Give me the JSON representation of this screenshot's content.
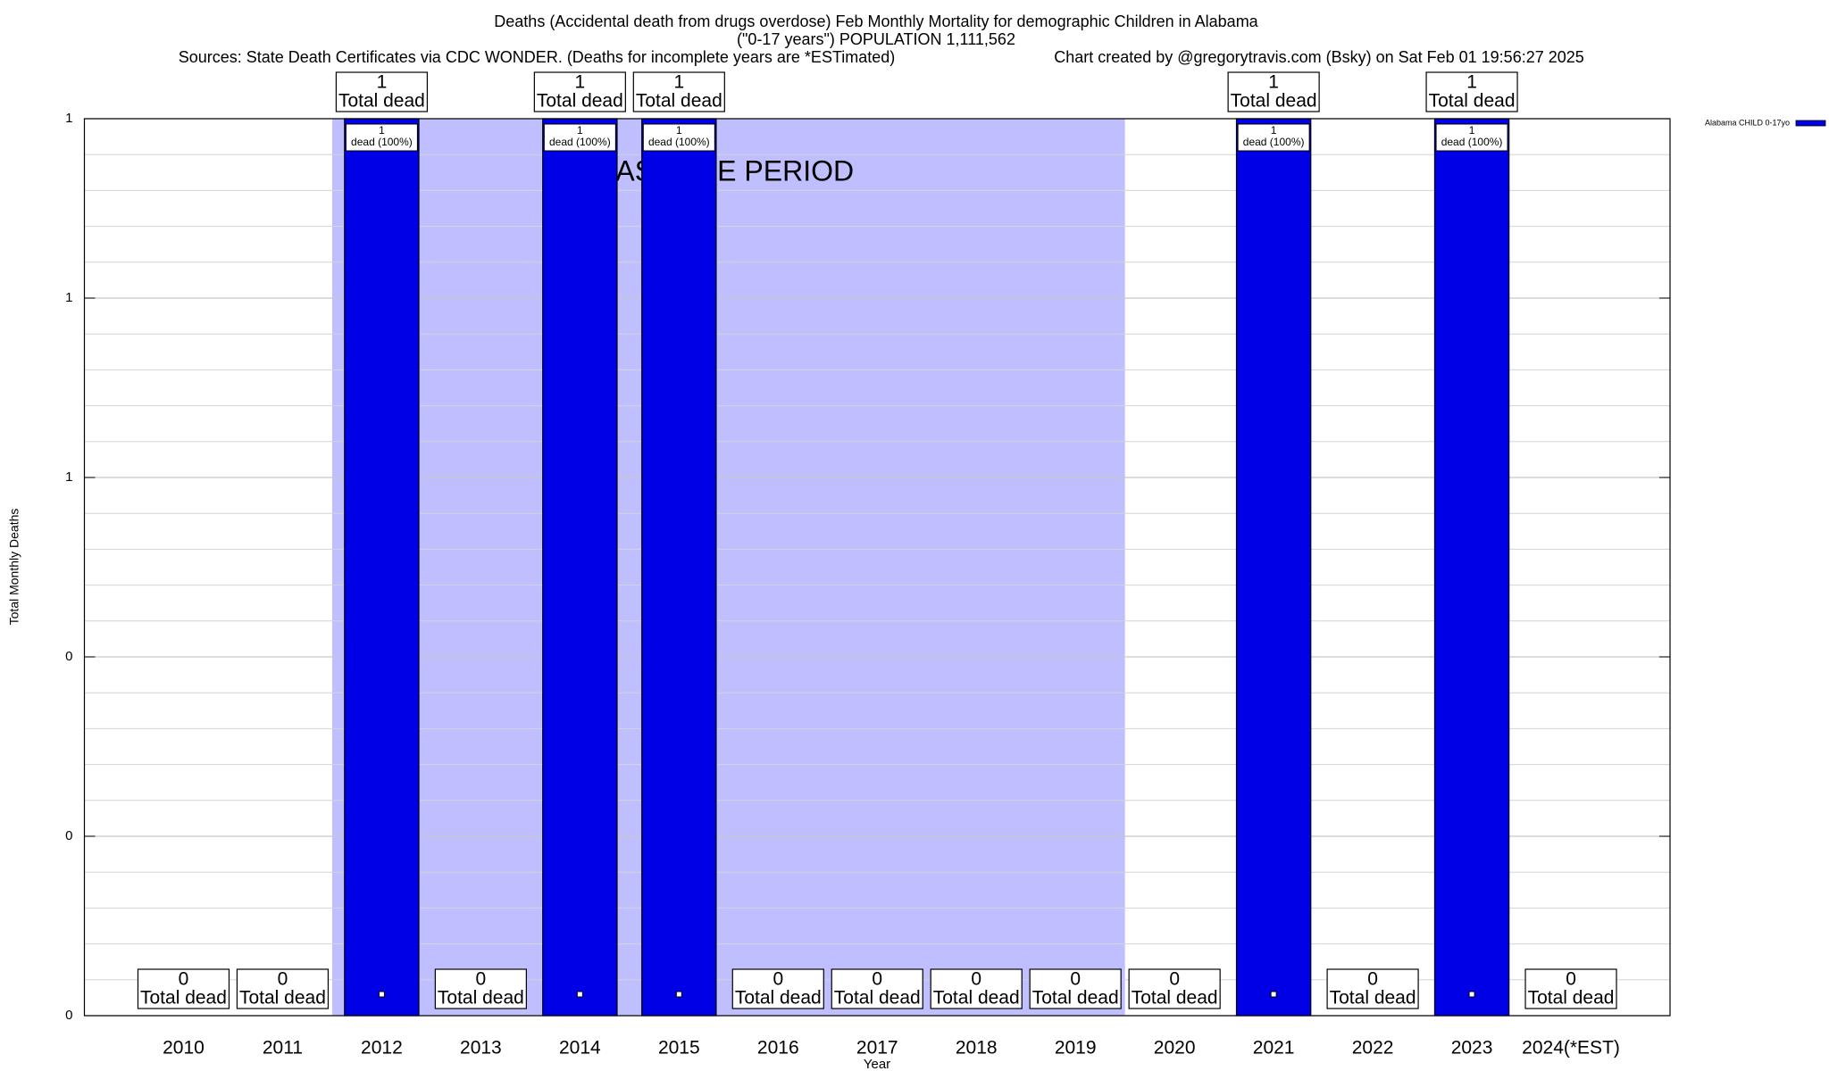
{
  "chart_data": {
    "type": "bar",
    "title": "Deaths (Accidental death from drugs overdose) Feb Monthly Mortality for demographic Children in Alabama",
    "subtitle": "(\"0-17 years\") POPULATION 1,111,562",
    "sources": "Sources: State Death Certificates via CDC WONDER. (Deaths for incomplete years are *ESTimated)",
    "credit": "Chart created by @gregorytravis.com (Bsky) on Sat Feb 01 19:56:27 2025",
    "x_label": "Year",
    "y_label": "Total Monthly Deaths",
    "categories": [
      "2010",
      "2011",
      "2012",
      "2013",
      "2014",
      "2015",
      "2016",
      "2017",
      "2018",
      "2019",
      "2020",
      "2021",
      "2022",
      "2023",
      "2024(*EST)"
    ],
    "series": [
      {
        "name": "Alabama CHILD 0-17yo",
        "color": "#0000e6",
        "values": [
          0,
          0,
          1,
          0,
          1,
          1,
          0,
          0,
          0,
          0,
          0,
          1,
          0,
          1,
          0
        ],
        "inner_labels": [
          null,
          null,
          "dead (100%)",
          null,
          "dead (100%)",
          "dead (100%)",
          null,
          null,
          null,
          null,
          null,
          "dead (100%)",
          null,
          "dead (100%)",
          null
        ]
      }
    ],
    "total_label": "Total dead",
    "ylim": [
      0,
      1
    ],
    "yticks": [
      0,
      {
        "value": 0.2,
        "label": "0"
      },
      {
        "value": 0.4,
        "label": "0"
      },
      {
        "value": 0.6,
        "label": "1"
      },
      {
        "value": 0.8,
        "label": "1"
      },
      1
    ],
    "minor_ticks": 5,
    "grid": true,
    "legend": "top-right",
    "baseline": {
      "label": "BASELINE PERIOD",
      "start": "2012",
      "end": "2019",
      "color": "#bfbfff"
    }
  }
}
